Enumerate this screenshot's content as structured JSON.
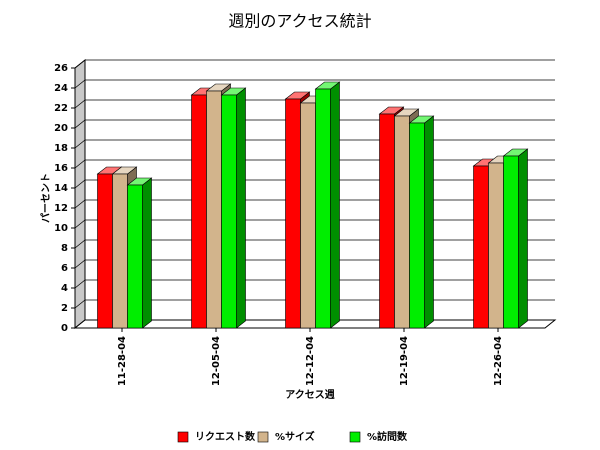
{
  "chart_data": {
    "type": "bar3d",
    "title": "週別のアクセス統計",
    "x_label": "アクセス週",
    "y_label": "パーセント",
    "categories": [
      "11-28-04",
      "12-05-04",
      "12-12-04",
      "12-19-04",
      "12-26-04"
    ],
    "series": [
      {
        "name": "リクエスト数",
        "color": "#ff0000",
        "values": [
          15.4,
          23.3,
          22.9,
          21.4,
          16.2
        ]
      },
      {
        "name": "%サイズ",
        "color": "#d2b48c",
        "values": [
          15.4,
          23.7,
          22.5,
          21.2,
          16.5
        ]
      },
      {
        "name": "%訪問数",
        "color": "#00ee00",
        "values": [
          14.3,
          23.3,
          23.9,
          20.5,
          17.2
        ]
      }
    ],
    "ylim": [
      0,
      26
    ],
    "yticks": [
      0,
      2,
      4,
      6,
      8,
      10,
      12,
      14,
      16,
      18,
      20,
      22,
      24,
      26
    ],
    "grid": true
  }
}
